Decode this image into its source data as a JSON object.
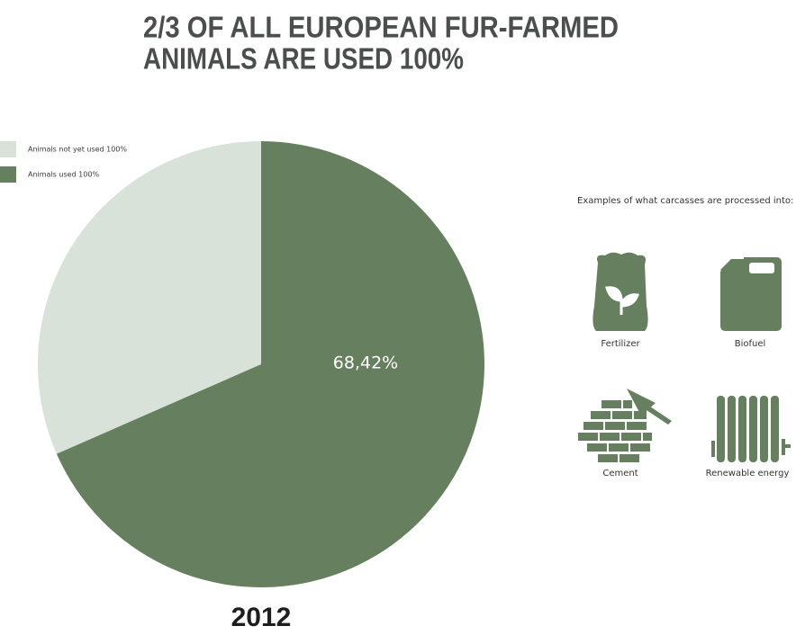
{
  "chart_data": {
    "type": "pie",
    "title": [
      "2/3 OF ALL EUROPEAN FUR-FARMED",
      "ANIMALS ARE USED 100%"
    ],
    "subtitle": "2012",
    "categories": [
      "Animals not yet used 100%",
      "Animals used 100%"
    ],
    "values": [
      31.58,
      68.42
    ],
    "value_labels": [
      null,
      "68,42%"
    ],
    "colors": [
      "#d8e2d9",
      "#66805f"
    ],
    "legend": "upper left"
  },
  "sidebar": {
    "heading": "Examples of what carcasses are processed into:",
    "items": [
      "Fertilizer",
      "Biofuel",
      "Cement",
      "Renewable energy"
    ]
  }
}
